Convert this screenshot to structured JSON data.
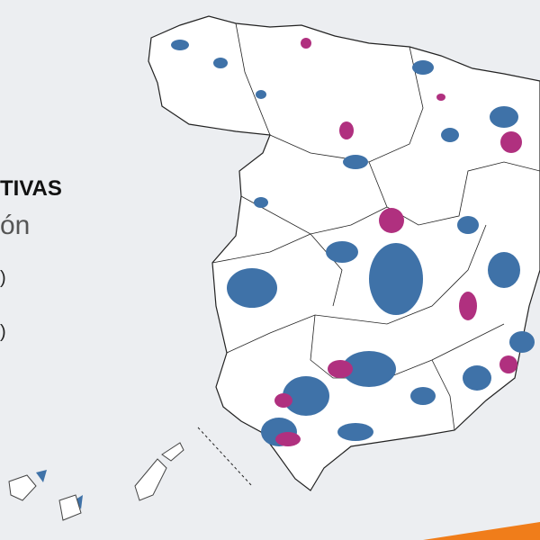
{
  "legend": {
    "title": "TIVAS",
    "subtitle": "ón",
    "items": [
      ")",
      ")"
    ]
  }
}
